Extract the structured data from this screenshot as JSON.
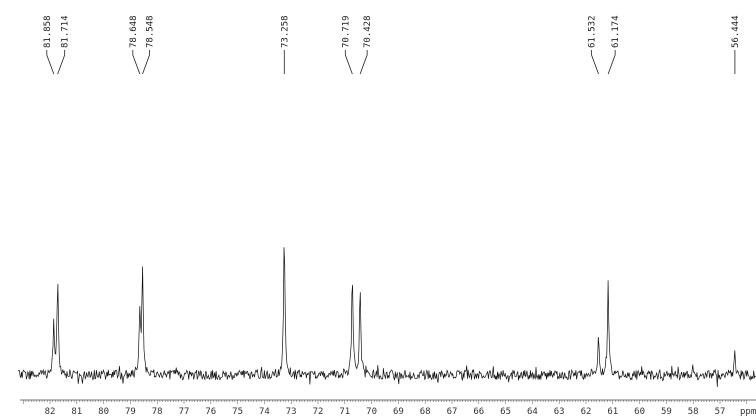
{
  "chart_data": {
    "type": "line",
    "title": "",
    "xlabel": "ppm",
    "ylabel": "",
    "xlim": [
      82.6,
      56.25
    ],
    "x_reversed": true,
    "grid": false,
    "ticks": [
      82,
      81,
      80,
      79,
      78,
      77,
      76,
      75,
      74,
      73,
      72,
      71,
      70,
      69,
      68,
      67,
      66,
      65,
      64,
      63,
      62,
      61,
      60,
      59,
      58,
      57
    ],
    "peaks": [
      {
        "ppm": 81.858,
        "label": "81.858",
        "intensity": 0.38
      },
      {
        "ppm": 81.714,
        "label": "81.714",
        "intensity": 0.66
      },
      {
        "ppm": 78.648,
        "label": "78.648",
        "intensity": 0.42
      },
      {
        "ppm": 78.548,
        "label": "78.548",
        "intensity": 0.75
      },
      {
        "ppm": 73.258,
        "label": "73.258",
        "intensity": 1.0
      },
      {
        "ppm": 70.719,
        "label": "70.719",
        "intensity": 0.68
      },
      {
        "ppm": 70.428,
        "label": "70.428",
        "intensity": 0.62
      },
      {
        "ppm": 61.532,
        "label": "61.532",
        "intensity": 0.3
      },
      {
        "ppm": 61.174,
        "label": "61.174",
        "intensity": 0.64
      },
      {
        "ppm": 56.444,
        "label": "56.444",
        "intensity": 0.15
      }
    ],
    "color": "#000000"
  }
}
